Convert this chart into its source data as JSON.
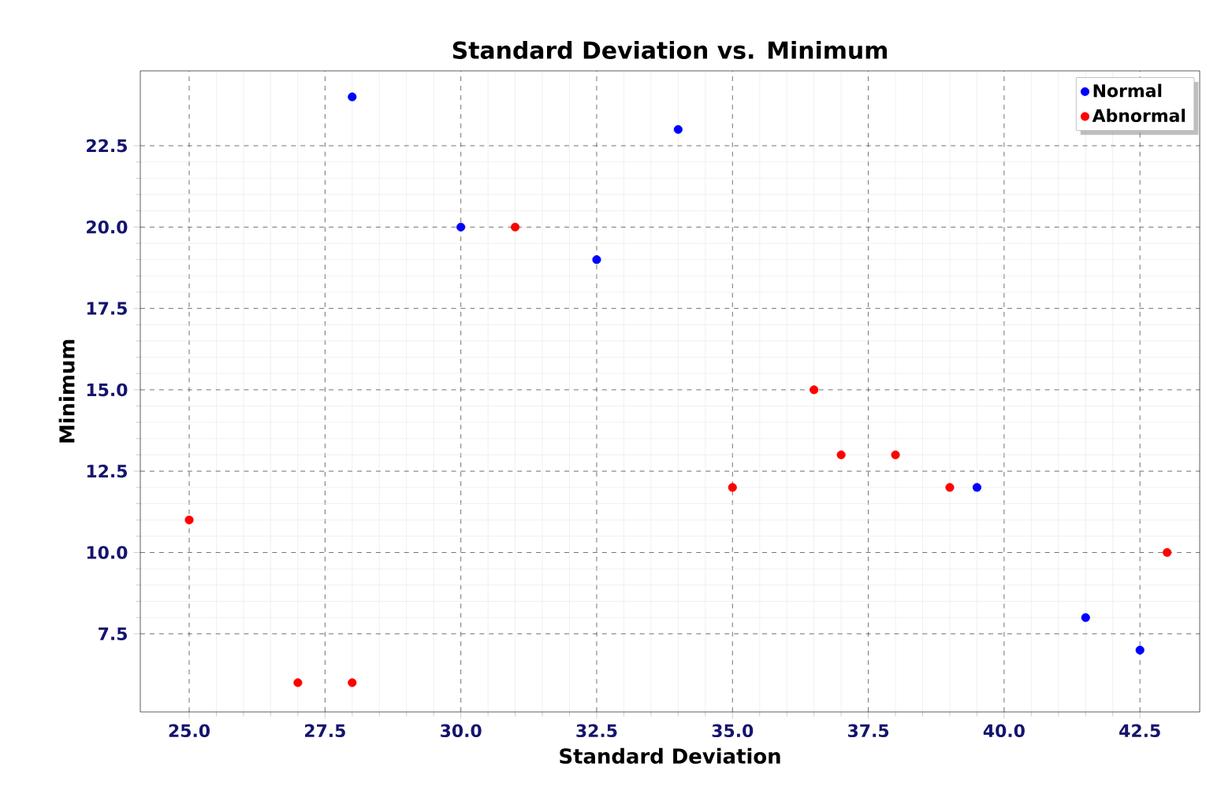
{
  "chart_data": {
    "type": "scatter",
    "title": "Standard Deviation vs. Minimum",
    "xlabel": "Standard Deviation",
    "ylabel": "Minimum",
    "series": [
      {
        "name": "Normal",
        "color": "#0000ff",
        "x": [
          28,
          30,
          32.5,
          34,
          39.5,
          41.5,
          42.5
        ],
        "values": [
          24,
          20,
          19,
          23,
          12,
          8,
          7
        ]
      },
      {
        "name": "Abnormal",
        "color": "#ff0000",
        "x": [
          25,
          27,
          28,
          31,
          35,
          36.5,
          37,
          38,
          39,
          43
        ],
        "values": [
          11,
          6,
          6,
          20,
          12,
          15,
          13,
          13,
          12,
          10
        ]
      }
    ],
    "xlim": [
      24.1,
      43.6
    ],
    "ylim": [
      5.1,
      24.8
    ],
    "xticks": [
      {
        "value": 25,
        "label": "25.0"
      },
      {
        "value": 27.5,
        "label": "27.5"
      },
      {
        "value": 30,
        "label": "30.0"
      },
      {
        "value": 32.5,
        "label": "32.5"
      },
      {
        "value": 35,
        "label": "35.0"
      },
      {
        "value": 37.5,
        "label": "37.5"
      },
      {
        "value": 40,
        "label": "40.0"
      },
      {
        "value": 42.5,
        "label": "42.5"
      }
    ],
    "yticks": [
      {
        "value": 7.5,
        "label": "7.5"
      },
      {
        "value": 10,
        "label": "10.0"
      },
      {
        "value": 12.5,
        "label": "12.5"
      },
      {
        "value": 15,
        "label": "15.0"
      },
      {
        "value": 17.5,
        "label": "17.5"
      },
      {
        "value": 20,
        "label": "20.0"
      },
      {
        "value": 22.5,
        "label": "22.5"
      }
    ],
    "grid": true,
    "legend": "top right",
    "marker": "circle"
  }
}
